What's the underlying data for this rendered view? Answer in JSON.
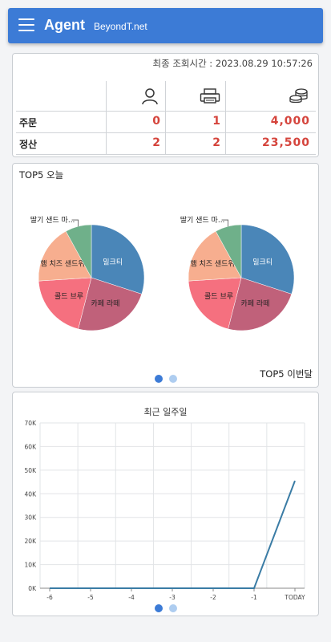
{
  "header": {
    "brand": "Agent",
    "subtitle": "BeyondT.net",
    "menu_icon": "menu-icon"
  },
  "summary": {
    "last_query": "최종 조회시간 : 2023.08.29 10:57:26",
    "column_icons": [
      "person-icon",
      "printer-icon",
      "coins-icon"
    ],
    "rows": [
      {
        "label": "주문",
        "values": [
          "0",
          "1",
          "4,000"
        ]
      },
      {
        "label": "정산",
        "values": [
          "2",
          "2",
          "23,500"
        ]
      }
    ],
    "value_color": "#d5443c"
  },
  "top5": {
    "title": "TOP5 오늘",
    "next_title": "TOP5 이번달",
    "charts": [
      {
        "type": "pie",
        "slices": [
          {
            "label": "밀크티",
            "value": 30,
            "color": "#4a86b8"
          },
          {
            "label": "카페 라떼",
            "value": 24,
            "color": "#c0617a"
          },
          {
            "label": "콜드 브루",
            "value": 20,
            "color": "#f5707f"
          },
          {
            "label": "햄 치즈 샌드위치",
            "value": 18,
            "color": "#f7ae8f"
          },
          {
            "label": "딸기 샌드 마...",
            "value": 8,
            "color": "#6fb08a"
          }
        ]
      },
      {
        "type": "pie",
        "slices": [
          {
            "label": "밀크티",
            "value": 30,
            "color": "#4a86b8"
          },
          {
            "label": "카페 라떼",
            "value": 24,
            "color": "#c0617a"
          },
          {
            "label": "콜드 브루",
            "value": 20,
            "color": "#f5707f"
          },
          {
            "label": "햄 치즈 샌드위치",
            "value": 18,
            "color": "#f7ae8f"
          },
          {
            "label": "딸기 샌드 마...",
            "value": 8,
            "color": "#6fb08a"
          }
        ]
      }
    ],
    "page_count": 2,
    "active_page": 0
  },
  "chart_data": {
    "type": "line",
    "title": "최근 일주일",
    "categories": [
      "-6",
      "-5",
      "-4",
      "-3",
      "-2",
      "-1",
      "TODAY"
    ],
    "series": [
      {
        "values": [
          0,
          0,
          0,
          0,
          0,
          0,
          45500
        ],
        "color": "#3a7ca5"
      }
    ],
    "ylim": [
      0,
      70000
    ],
    "yticks": [
      "0K",
      "10K",
      "20K",
      "30K",
      "40K",
      "50K",
      "60K",
      "70K"
    ],
    "grid": true
  },
  "week_pages": {
    "page_count": 2,
    "active_page": 0
  }
}
